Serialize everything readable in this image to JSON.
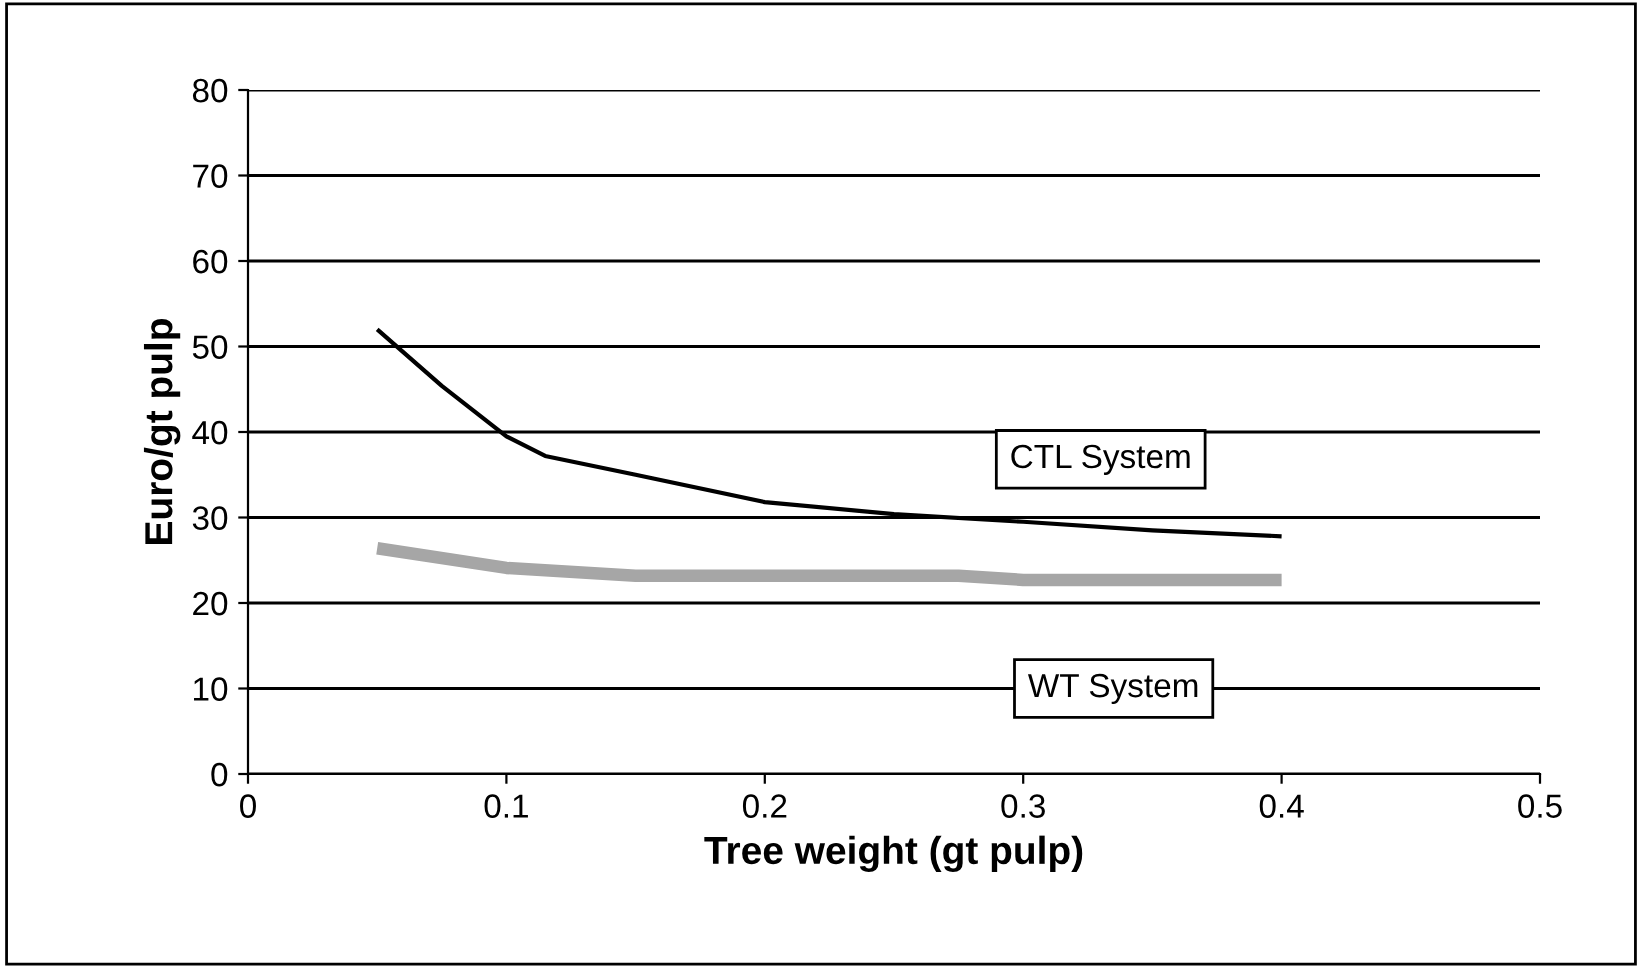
{
  "chart_data": {
    "type": "line",
    "xlabel": "Tree weight (gt pulp)",
    "ylabel": "Euro/gt pulp",
    "xlim": [
      0,
      0.5
    ],
    "xticks": [
      0,
      0.1,
      0.2,
      0.3,
      0.4,
      0.5
    ],
    "ylim": [
      0,
      80
    ],
    "yticks": [
      0,
      10,
      20,
      30,
      40,
      50,
      60,
      70,
      80
    ],
    "grid": "y",
    "legend": false,
    "series": [
      {
        "name": "CTL System",
        "color": "#000000",
        "x": [
          0.05,
          0.075,
          0.1,
          0.115,
          0.15,
          0.2,
          0.25,
          0.3,
          0.35,
          0.4
        ],
        "values": [
          52,
          45.4,
          39.5,
          37.2,
          35,
          31.8,
          30.4,
          29.5,
          28.5,
          27.8
        ]
      },
      {
        "name": "WT System",
        "color": "#a6a6a6",
        "x": [
          0.05,
          0.1,
          0.15,
          0.275,
          0.3,
          0.4
        ],
        "values": [
          26.4,
          24.1,
          23.2,
          23.2,
          22.7,
          22.7
        ]
      }
    ]
  }
}
